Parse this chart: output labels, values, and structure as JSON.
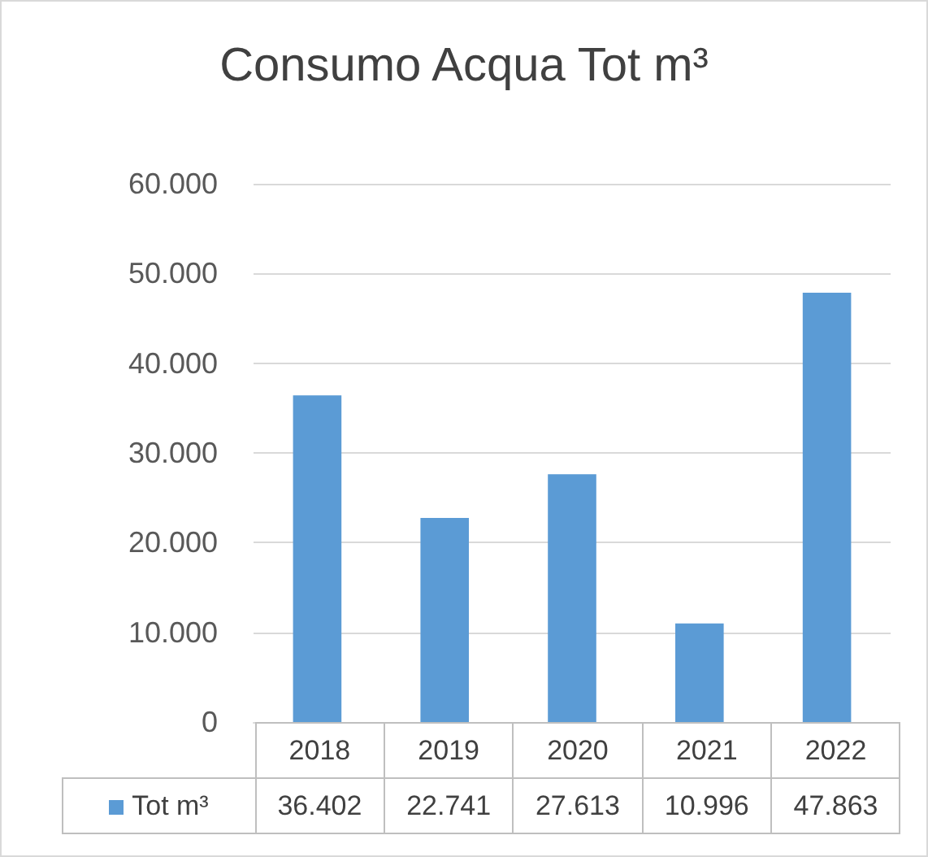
{
  "chart_data": {
    "type": "bar",
    "title": "Consumo Acqua Tot m³",
    "categories": [
      "2018",
      "2019",
      "2020",
      "2021",
      "2022"
    ],
    "series": [
      {
        "name": "Tot m³",
        "color": "#5b9bd5",
        "values": [
          36402,
          22741,
          27613,
          10996,
          47863
        ],
        "value_labels": [
          "36.402",
          "22.741",
          "27.613",
          "10.996",
          "47.863"
        ]
      }
    ],
    "ylim": [
      0,
      60000
    ],
    "yticks": [
      {
        "value": 0,
        "label": "0"
      },
      {
        "value": 10000,
        "label": "10.000"
      },
      {
        "value": 20000,
        "label": "20.000"
      },
      {
        "value": 30000,
        "label": "30.000"
      },
      {
        "value": 40000,
        "label": "40.000"
      },
      {
        "value": 50000,
        "label": "50.000"
      },
      {
        "value": 60000,
        "label": "60.000"
      }
    ],
    "grid": "y",
    "legend": "bottom"
  }
}
